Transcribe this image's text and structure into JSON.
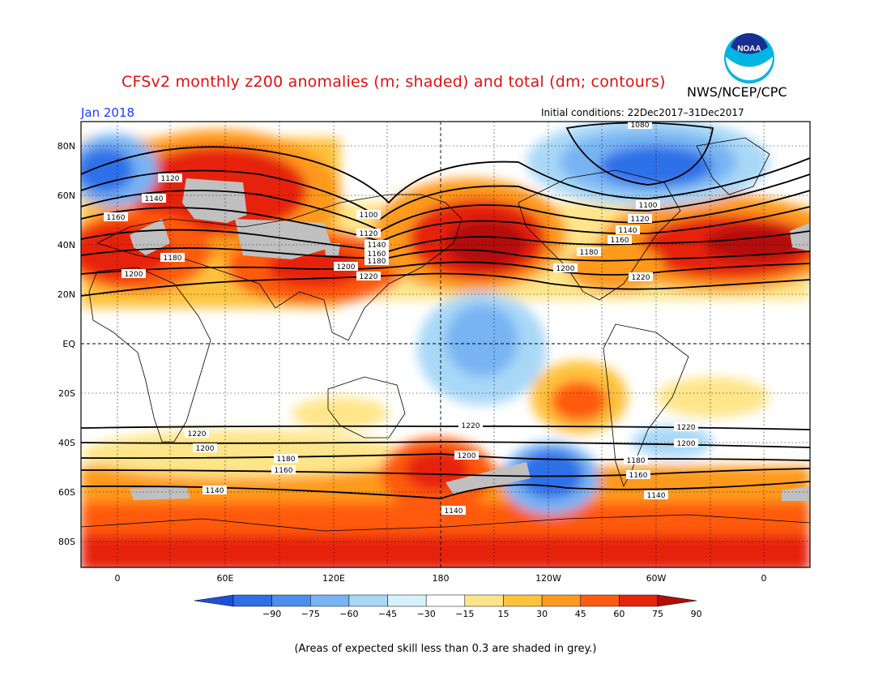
{
  "title": "CFSv2 monthly z200 anomalies (m; shaded) and total (dm; contours)",
  "organization": "NWS/NCEP/CPC",
  "month": "Jan 2018",
  "initial_conditions": "Initial conditions: 22Dec2017–31Dec2017",
  "footnote": "(Areas of expected skill less than 0.3 are shaded in grey.)",
  "logo": {
    "text": "NOAA",
    "icon": "noaa-logo-icon",
    "colors": {
      "outer": "#00b5e2",
      "inner": "#1a2e8f"
    }
  },
  "map": {
    "lat_ticks": [
      "80N",
      "60N",
      "40N",
      "20N",
      "EQ",
      "20S",
      "40S",
      "60S",
      "80S"
    ],
    "lon_ticks": [
      "0",
      "60E",
      "120E",
      "180",
      "120W",
      "60W",
      "0"
    ]
  },
  "contour_labels": {
    "nh": [
      "1080",
      "1100",
      "1100",
      "1120",
      "1120",
      "1120",
      "1140",
      "1140",
      "1140",
      "1160",
      "1160",
      "1160",
      "1180",
      "1180",
      "1180",
      "1200",
      "1200",
      "1200",
      "1220",
      "1220"
    ],
    "sh": [
      "1220",
      "1220",
      "1220",
      "1200",
      "1200",
      "1200",
      "1180",
      "1180",
      "1160",
      "1160",
      "1140",
      "1140",
      "1140"
    ]
  },
  "colorbar": {
    "labels": [
      "−90",
      "−75",
      "−60",
      "−45",
      "−30",
      "−15",
      "15",
      "30",
      "45",
      "60",
      "75",
      "90"
    ],
    "colors": [
      "#1c4fd9",
      "#2f6fe8",
      "#4b8fef",
      "#78b4f3",
      "#a9d8f7",
      "#d6f2fb",
      "#ffffff",
      "#ffe58a",
      "#ffc23c",
      "#ff9a1f",
      "#ff5a10",
      "#e6240a",
      "#b40d07"
    ]
  }
}
